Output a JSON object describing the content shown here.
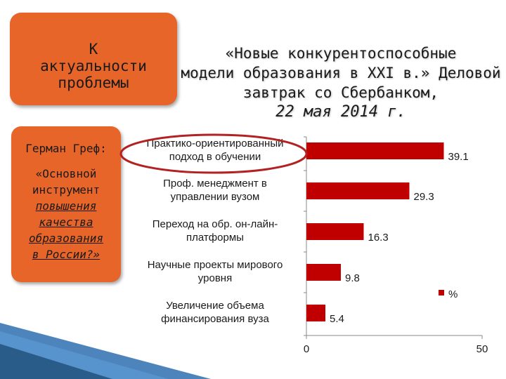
{
  "slide": {
    "topic_box": "К актуальности проблемы",
    "headline_line1": "«Новые конкурентоспособные",
    "headline_line2": "модели образования в XXI в.» Деловой",
    "headline_line3": "завтрак со Сбербанком,",
    "headline_date": "22 мая 2014 г.",
    "quote_author": "Герман Греф:",
    "quote_line1": "«Основной",
    "quote_line2": "инструмент",
    "quote_line3": "повышения",
    "quote_line4": "качества",
    "quote_line5": "образования",
    "quote_line6": "в России?»"
  },
  "colors": {
    "accent_box": "#e8652a",
    "bar": "#c00000",
    "highlight_ring": "#b22222"
  },
  "chart_data": {
    "type": "bar",
    "orientation": "horizontal",
    "categories": [
      [
        "Практико-ориентированный",
        "подход в обучении"
      ],
      [
        "Проф. менеджмент в",
        "управлении вузом"
      ],
      [
        "Переход на обр. он-лайн-",
        "платформы"
      ],
      [
        "Научные проекты мирового",
        "уровня"
      ],
      [
        "Увеличение объема",
        "финансирования вуза"
      ]
    ],
    "series": [
      {
        "name": "%",
        "values": [
          39.1,
          29.3,
          16.3,
          9.8,
          5.4
        ]
      }
    ],
    "value_labels": [
      "39.1",
      "29.3",
      "16.3",
      "9.8",
      "5.4"
    ],
    "xlim": [
      0,
      50
    ],
    "ticks": [
      "0",
      "50"
    ],
    "legend": "right",
    "highlighted_category_index": 0,
    "grid": false
  }
}
